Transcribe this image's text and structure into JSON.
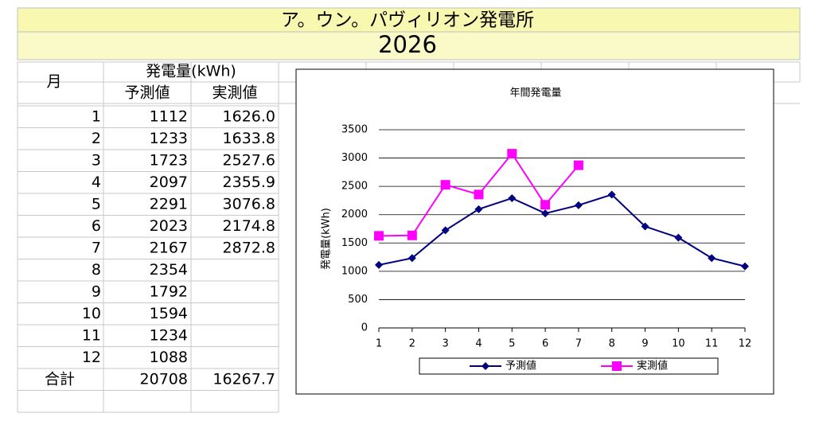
{
  "header": {
    "title": "ア。ウン。パヴィリオン発電所",
    "year": "2026"
  },
  "table": {
    "month_header": "月",
    "group_header": "発電量(kWh)",
    "columns": [
      "予測値",
      "実測値"
    ],
    "rows": [
      [
        "1",
        "1112",
        "1626.0"
      ],
      [
        "2",
        "1233",
        "1633.8"
      ],
      [
        "3",
        "1723",
        "2527.6"
      ],
      [
        "4",
        "2097",
        "2355.9"
      ],
      [
        "5",
        "2291",
        "3076.8"
      ],
      [
        "6",
        "2023",
        "2174.8"
      ],
      [
        "7",
        "2167",
        "2872.8"
      ],
      [
        "8",
        "2354",
        null
      ],
      [
        "9",
        "1792",
        null
      ],
      [
        "10",
        "1594",
        null
      ],
      [
        "11",
        "1234",
        null
      ],
      [
        "12",
        "1088",
        null
      ]
    ],
    "total": [
      "合計",
      "20708",
      "16267.7"
    ]
  },
  "chart_data": {
    "type": "line",
    "title": "年間発電量",
    "y_label": "発電量(kWh)",
    "categories": [
      "1",
      "2",
      "3",
      "4",
      "5",
      "6",
      "7",
      "8",
      "9",
      "10",
      "11",
      "12"
    ],
    "series": [
      {
        "name": "予測値",
        "color": "#000080",
        "marker": "diamond",
        "values": [
          1112,
          1233,
          1723,
          2097,
          2291,
          2023,
          2167,
          2354,
          1792,
          1594,
          1234,
          1088
        ]
      },
      {
        "name": "実測値",
        "color": "#ff00ff",
        "marker": "square",
        "values": [
          1626.0,
          1633.8,
          2527.6,
          2355.9,
          3076.8,
          2174.8,
          2872.8,
          null,
          null,
          null,
          null,
          null
        ]
      }
    ],
    "ylim": [
      0,
      3500
    ],
    "yticks": [
      0,
      500,
      1000,
      1500,
      2000,
      2500,
      3000,
      3500
    ],
    "grid": true,
    "legend": "bottom"
  }
}
